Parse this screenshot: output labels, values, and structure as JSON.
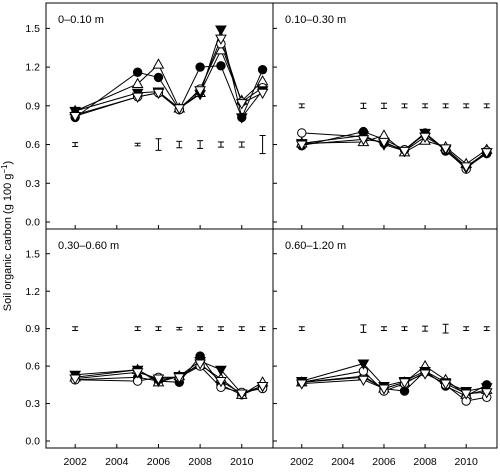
{
  "ylabel_main": "Soil organic carbon (g 100 g",
  "ylabel_sup": "−1",
  "ylabel_close": ")",
  "chart_data": [
    {
      "type": "line",
      "label": "0–0.10 m",
      "ylim": [
        0.0,
        1.65
      ],
      "xlim": [
        2000.6,
        2011.5
      ],
      "series": [
        {
          "marker": "filled-circle",
          "x": [
            2002,
            2005,
            2006,
            2007,
            2008,
            2009,
            2010,
            2011
          ],
          "y": [
            0.81,
            1.16,
            1.12,
            0.87,
            1.2,
            1.21,
            0.81,
            1.18
          ]
        },
        {
          "marker": "open-triangle",
          "x": [
            2002,
            2005,
            2006,
            2007,
            2008,
            2009,
            2010,
            2011
          ],
          "y": [
            0.86,
            1.07,
            1.22,
            0.88,
            1.0,
            1.33,
            0.94,
            1.09
          ]
        },
        {
          "marker": "open-circle",
          "x": [
            2002,
            2005,
            2006,
            2007,
            2008,
            2009,
            2010,
            2011
          ],
          "y": [
            0.83,
            0.97,
            1.0,
            0.87,
            1.03,
            1.38,
            0.93,
            1.04
          ]
        },
        {
          "marker": "filled-triangle-down",
          "x": [
            2002,
            2005,
            2006,
            2007,
            2008,
            2009,
            2010,
            2011
          ],
          "y": [
            0.86,
            1.0,
            1.01,
            0.88,
            0.99,
            1.49,
            0.81,
            1.02
          ]
        },
        {
          "marker": "open-triangle-down",
          "x": [
            2002,
            2005,
            2006,
            2007,
            2008,
            2009,
            2010,
            2011
          ],
          "y": [
            0.82,
            0.97,
            1.0,
            0.88,
            1.02,
            1.42,
            0.92,
            1.0
          ]
        }
      ],
      "error_bars": {
        "x": [
          2002,
          2005,
          2006,
          2007,
          2008,
          2009,
          2010,
          2011
        ],
        "center": 0.6,
        "half": [
          0.015,
          0.01,
          0.045,
          0.025,
          0.03,
          0.02,
          0.02,
          0.07
        ]
      }
    },
    {
      "type": "line",
      "label": "0.10–0.30 m",
      "ylim": [
        0.0,
        1.65
      ],
      "xlim": [
        2000.6,
        2011.5
      ],
      "series": [
        {
          "marker": "filled-circle",
          "x": [
            2002,
            2005,
            2006,
            2007,
            2008,
            2009,
            2010,
            2011
          ],
          "y": [
            0.59,
            0.7,
            0.64,
            0.56,
            0.69,
            0.55,
            0.42,
            0.53
          ]
        },
        {
          "marker": "open-triangle",
          "x": [
            2002,
            2005,
            2006,
            2007,
            2008,
            2009,
            2010,
            2011
          ],
          "y": [
            0.61,
            0.62,
            0.67,
            0.54,
            0.63,
            0.58,
            0.45,
            0.56
          ]
        },
        {
          "marker": "open-circle",
          "x": [
            2002,
            2005,
            2006,
            2007,
            2008,
            2009,
            2010,
            2011
          ],
          "y": [
            0.69,
            0.66,
            0.61,
            0.56,
            0.68,
            0.56,
            0.41,
            0.55
          ]
        },
        {
          "marker": "filled-triangle-down",
          "x": [
            2002,
            2005,
            2006,
            2007,
            2008,
            2009,
            2010,
            2011
          ],
          "y": [
            0.61,
            0.67,
            0.6,
            0.55,
            0.69,
            0.56,
            0.42,
            0.54
          ]
        },
        {
          "marker": "open-triangle-down",
          "x": [
            2002,
            2005,
            2006,
            2007,
            2008,
            2009,
            2010,
            2011
          ],
          "y": [
            0.6,
            0.64,
            0.62,
            0.55,
            0.66,
            0.57,
            0.43,
            0.54
          ]
        }
      ],
      "error_bars": {
        "x": [
          2002,
          2005,
          2006,
          2007,
          2008,
          2009,
          2010,
          2011
        ],
        "center": 0.9,
        "half": [
          0.015,
          0.02,
          0.02,
          0.015,
          0.015,
          0.015,
          0.015,
          0.015
        ]
      }
    },
    {
      "type": "line",
      "label": "0.30–0.60 m",
      "ylim": [
        0.0,
        1.65
      ],
      "xlim": [
        2000.6,
        2011.5
      ],
      "series": [
        {
          "marker": "filled-circle",
          "x": [
            2002,
            2005,
            2006,
            2007,
            2008,
            2009,
            2010,
            2011
          ],
          "y": [
            0.49,
            0.51,
            0.48,
            0.47,
            0.68,
            0.45,
            0.37,
            0.44
          ]
        },
        {
          "marker": "open-triangle",
          "x": [
            2002,
            2005,
            2006,
            2007,
            2008,
            2009,
            2010,
            2011
          ],
          "y": [
            0.51,
            0.57,
            0.47,
            0.52,
            0.61,
            0.5,
            0.37,
            0.47
          ]
        },
        {
          "marker": "open-circle",
          "x": [
            2002,
            2005,
            2006,
            2007,
            2008,
            2009,
            2010,
            2011
          ],
          "y": [
            0.49,
            0.48,
            0.51,
            0.51,
            0.6,
            0.43,
            0.39,
            0.42
          ]
        },
        {
          "marker": "filled-triangle-down",
          "x": [
            2002,
            2005,
            2006,
            2007,
            2008,
            2009,
            2010,
            2011
          ],
          "y": [
            0.53,
            0.57,
            0.48,
            0.52,
            0.64,
            0.57,
            0.38,
            0.44
          ]
        },
        {
          "marker": "open-triangle-down",
          "x": [
            2002,
            2005,
            2006,
            2007,
            2008,
            2009,
            2010,
            2011
          ],
          "y": [
            0.5,
            0.55,
            0.5,
            0.51,
            0.62,
            0.48,
            0.38,
            0.44
          ]
        }
      ],
      "error_bars": {
        "x": [
          2002,
          2005,
          2006,
          2007,
          2008,
          2009,
          2010,
          2011
        ],
        "center": 0.9,
        "half": [
          0.015,
          0.015,
          0.015,
          0.01,
          0.015,
          0.015,
          0.015,
          0.015
        ]
      }
    },
    {
      "type": "line",
      "label": "0.60–1.20 m",
      "ylim": [
        0.0,
        1.65
      ],
      "xlim": [
        2000.6,
        2011.5
      ],
      "series": [
        {
          "marker": "filled-circle",
          "x": [
            2002,
            2005,
            2006,
            2007,
            2008,
            2009,
            2010,
            2011
          ],
          "y": [
            0.47,
            0.51,
            0.42,
            0.4,
            0.56,
            0.44,
            0.36,
            0.45
          ]
        },
        {
          "marker": "open-triangle",
          "x": [
            2002,
            2005,
            2006,
            2007,
            2008,
            2009,
            2010,
            2011
          ],
          "y": [
            0.47,
            0.52,
            0.42,
            0.47,
            0.6,
            0.49,
            0.37,
            0.41
          ]
        },
        {
          "marker": "open-circle",
          "x": [
            2002,
            2005,
            2006,
            2007,
            2008,
            2009,
            2010,
            2011
          ],
          "y": [
            0.47,
            0.56,
            0.4,
            0.46,
            0.55,
            0.45,
            0.32,
            0.35
          ]
        },
        {
          "marker": "filled-triangle-down",
          "x": [
            2002,
            2005,
            2006,
            2007,
            2008,
            2009,
            2010,
            2011
          ],
          "y": [
            0.48,
            0.62,
            0.44,
            0.48,
            0.56,
            0.47,
            0.4,
            0.43
          ]
        },
        {
          "marker": "open-triangle-down",
          "x": [
            2002,
            2005,
            2006,
            2007,
            2008,
            2009,
            2010,
            2011
          ],
          "y": [
            0.46,
            0.49,
            0.42,
            0.47,
            0.54,
            0.46,
            0.38,
            0.39
          ]
        }
      ],
      "error_bars": {
        "x": [
          2002,
          2005,
          2006,
          2007,
          2008,
          2009,
          2010,
          2011
        ],
        "center": 0.9,
        "half": [
          0.015,
          0.03,
          0.015,
          0.015,
          0.02,
          0.035,
          0.015,
          0.015
        ]
      }
    }
  ],
  "y_ticks": [
    "0.0",
    "0.3",
    "0.6",
    "0.9",
    "1.2",
    "1.5"
  ],
  "y_tick_values": [
    0.0,
    0.3,
    0.6,
    0.9,
    1.2,
    1.5
  ],
  "x_ticks": [
    "2002",
    "2004",
    "2006",
    "2008",
    "2010"
  ],
  "x_tick_values": [
    2002,
    2004,
    2006,
    2008,
    2010
  ]
}
